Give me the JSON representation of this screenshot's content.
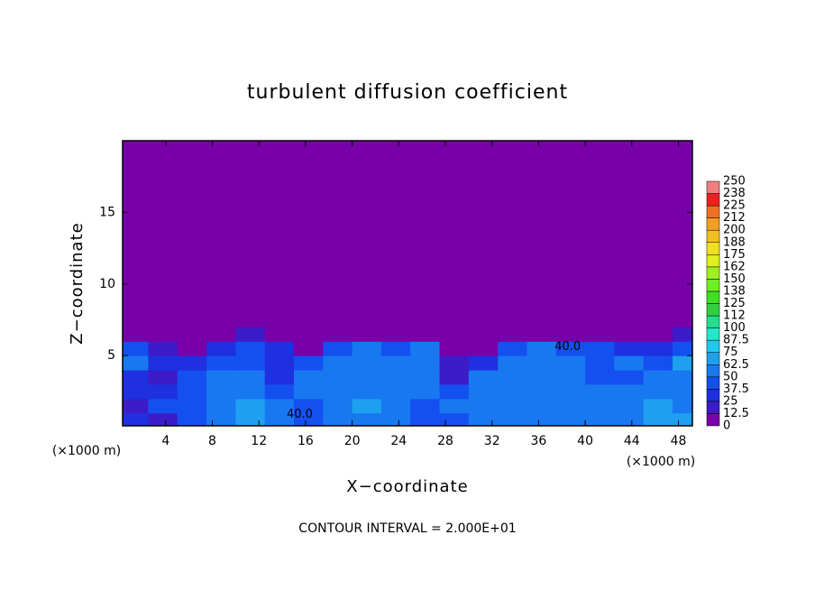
{
  "chart_data": {
    "type": "heatmap",
    "title": "turbulent diffusion coefficient",
    "x_label": "X−coordinate",
    "y_label": "Z−coordinate",
    "x_unit_left": "(×1000 m)",
    "x_unit_right": "(×1000 m)",
    "footer": "CONTOUR INTERVAL = 2.000E+01",
    "annotations": [
      "40.0",
      "40.0"
    ],
    "xlim": [
      0.3,
      49.2
    ],
    "ylim": [
      0.1,
      20
    ],
    "xticks": [
      4,
      8,
      12,
      16,
      20,
      24,
      28,
      32,
      36,
      40,
      44,
      48
    ],
    "yticks": [
      5,
      10,
      15
    ],
    "x_edges": [
      0,
      2.5,
      5,
      7.5,
      10,
      12.5,
      15,
      17.5,
      20,
      22.5,
      25,
      27.5,
      30,
      32.5,
      35,
      37.5,
      40,
      42.5,
      45,
      47.5,
      50
    ],
    "z_edges": [
      0,
      1,
      2,
      3,
      4,
      5,
      6,
      7,
      20
    ],
    "field": [
      [
        30,
        20,
        40,
        55,
        70,
        60,
        45,
        60,
        50,
        55,
        40,
        45,
        50,
        55,
        60,
        60,
        55,
        60,
        65,
        70
      ],
      [
        20,
        40,
        45,
        60,
        65,
        55,
        45,
        60,
        65,
        60,
        40,
        50,
        55,
        60,
        60,
        55,
        55,
        50,
        65,
        60
      ],
      [
        25,
        35,
        40,
        55,
        60,
        45,
        50,
        55,
        60,
        50,
        55,
        40,
        60,
        55,
        55,
        50,
        50,
        60,
        55,
        50
      ],
      [
        30,
        20,
        40,
        50,
        55,
        35,
        50,
        60,
        55,
        60,
        50,
        20,
        55,
        60,
        55,
        55,
        45,
        40,
        50,
        55
      ],
      [
        55,
        30,
        35,
        45,
        45,
        25,
        45,
        55,
        50,
        60,
        60,
        15,
        30,
        55,
        60,
        50,
        45,
        60,
        45,
        70
      ],
      [
        40,
        20,
        10,
        30,
        40,
        35,
        5,
        45,
        50,
        40,
        50,
        10,
        10,
        40,
        50,
        45,
        45,
        25,
        30,
        45
      ],
      [
        5,
        0,
        0,
        5,
        20,
        10,
        0,
        5,
        10,
        10,
        5,
        0,
        0,
        5,
        10,
        5,
        5,
        10,
        5,
        15
      ],
      [
        0,
        0,
        0,
        0,
        0,
        0,
        0,
        0,
        0,
        0,
        0,
        0,
        0,
        0,
        0,
        0,
        0,
        0,
        0,
        0
      ]
    ],
    "levels": [
      0,
      12.5,
      25,
      37.5,
      50,
      62.5,
      75,
      87.5,
      100,
      112,
      125,
      138,
      150,
      162,
      175,
      188,
      200,
      212,
      225,
      238,
      250
    ],
    "colors": [
      "#7800a8",
      "#3c1cc8",
      "#1e30e0",
      "#1450f0",
      "#1878f0",
      "#1ea0f0",
      "#20c8f0",
      "#20e8c8",
      "#20e090",
      "#30d040",
      "#40e020",
      "#70f020",
      "#a0f020",
      "#e0f020",
      "#f0e020",
      "#f0c020",
      "#f0a020",
      "#f07020",
      "#f02020",
      "#f08080"
    ]
  }
}
